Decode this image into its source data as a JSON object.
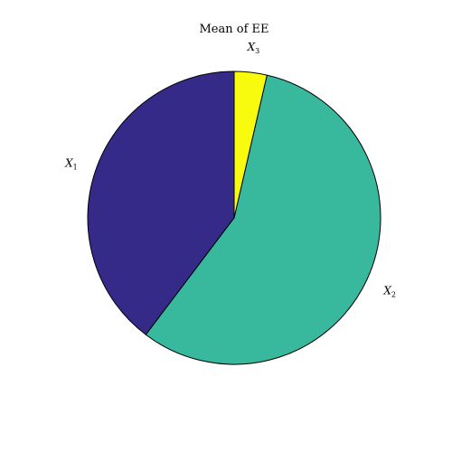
{
  "chart_data": {
    "type": "pie",
    "title": "Mean of EE",
    "categories": [
      "X1",
      "X2",
      "X3"
    ],
    "labels": [
      {
        "base": "X",
        "sub": "1"
      },
      {
        "base": "X",
        "sub": "2"
      },
      {
        "base": "X",
        "sub": "3"
      }
    ],
    "values": [
      0.397,
      0.567,
      0.036
    ],
    "colors": [
      "#352a87",
      "#38b99e",
      "#f9fb0e"
    ],
    "edge_color": "#000000",
    "start": "top",
    "direction": "counterclockwise",
    "legend": false
  }
}
